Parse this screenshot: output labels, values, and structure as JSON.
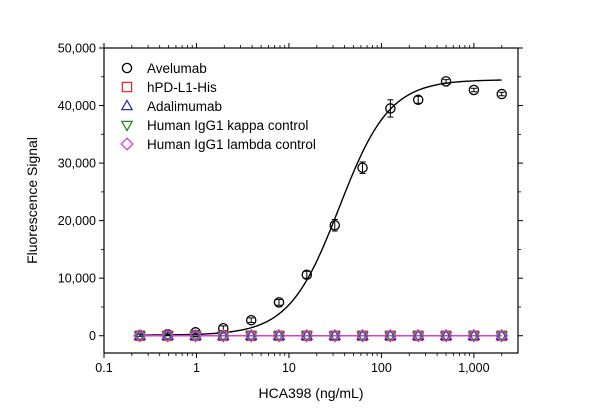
{
  "chart_data": {
    "type": "scatter",
    "title": "",
    "xlabel": "HCA398 (ng/mL)",
    "ylabel": "Fluorescence Signal",
    "x_scale": "log",
    "xlim": [
      0.1,
      3000
    ],
    "ylim": [
      -3000,
      50000
    ],
    "x_ticks": [
      0.1,
      1,
      10,
      100,
      1000
    ],
    "x_tick_labels": [
      "0.1",
      "1",
      "10",
      "100",
      "1,000"
    ],
    "y_ticks": [
      0,
      10000,
      20000,
      30000,
      40000,
      50000
    ],
    "y_tick_labels": [
      "0",
      "10,000",
      "20,000",
      "30,000",
      "40,000",
      "50,000"
    ],
    "grid": false,
    "legend_position": "top-left",
    "series": [
      {
        "name": "Avelumab",
        "marker": "circle",
        "color": "#000000",
        "x": [
          0.244,
          0.488,
          0.977,
          1.95,
          3.91,
          7.81,
          15.6,
          31.3,
          62.5,
          125,
          250,
          500,
          1000,
          2000
        ],
        "y": [
          100,
          250,
          600,
          1300,
          2700,
          5800,
          10600,
          19200,
          29200,
          39500,
          41000,
          44200,
          42700,
          42000
        ],
        "err": [
          200,
          200,
          300,
          400,
          400,
          500,
          600,
          1000,
          1000,
          1500,
          600,
          300,
          300,
          300
        ],
        "fit": {
          "model": "4PL",
          "bottom": 100,
          "top": 44500,
          "ec50": 35,
          "hill": 1.6,
          "color": "#000000"
        }
      },
      {
        "name": "hPD-L1-His",
        "marker": "square",
        "color": "#e03030",
        "x": [
          0.244,
          0.488,
          0.977,
          1.95,
          3.91,
          7.81,
          15.6,
          31.3,
          62.5,
          125,
          250,
          500,
          1000,
          2000
        ],
        "y": [
          0,
          0,
          0,
          0,
          0,
          0,
          0,
          0,
          0,
          0,
          0,
          0,
          0,
          0
        ]
      },
      {
        "name": "Adalimumab",
        "marker": "triangle-up",
        "color": "#2d2dbf",
        "x": [
          0.244,
          0.488,
          0.977,
          1.95,
          3.91,
          7.81,
          15.6,
          31.3,
          62.5,
          125,
          250,
          500,
          1000,
          2000
        ],
        "y": [
          0,
          0,
          0,
          0,
          0,
          0,
          0,
          0,
          0,
          0,
          0,
          0,
          0,
          0
        ]
      },
      {
        "name": "Human IgG1 kappa control",
        "marker": "triangle-down",
        "color": "#1e8a1e",
        "x": [
          0.244,
          0.488,
          0.977,
          1.95,
          3.91,
          7.81,
          15.6,
          31.3,
          62.5,
          125,
          250,
          500,
          1000,
          2000
        ],
        "y": [
          0,
          0,
          0,
          0,
          0,
          0,
          0,
          0,
          0,
          0,
          0,
          0,
          0,
          0
        ]
      },
      {
        "name": "Human IgG1 lambda control",
        "marker": "diamond",
        "color": "#d43fd4",
        "x": [
          0.244,
          0.488,
          0.977,
          1.95,
          3.91,
          7.81,
          15.6,
          31.3,
          62.5,
          125,
          250,
          500,
          1000,
          2000
        ],
        "y": [
          0,
          0,
          0,
          0,
          0,
          0,
          0,
          0,
          0,
          0,
          0,
          0,
          0,
          0
        ]
      }
    ]
  }
}
